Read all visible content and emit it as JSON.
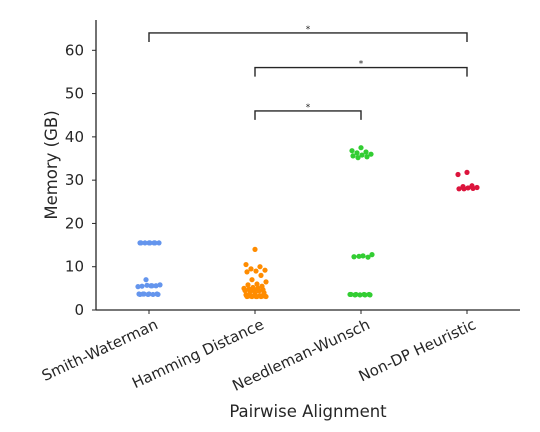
{
  "chart_data": {
    "type": "scatter",
    "xlabel": "Pairwise Alignment",
    "ylabel": "Memory (GB)",
    "ylim": [
      0,
      67
    ],
    "yticks": [
      0,
      10,
      20,
      30,
      40,
      50,
      60
    ],
    "grid": false,
    "categories": [
      "Smith-Waterman",
      "Hamming Distance",
      "Needleman-Wunsch",
      "Non-DP Heuristic"
    ],
    "series": [
      {
        "category": "Smith-Waterman",
        "color": "#6495ED",
        "values": [
          15.5,
          15.5,
          15.5,
          15.5,
          15.5,
          15.5,
          15.5,
          15.5,
          7.0,
          5.8,
          5.6,
          5.5,
          5.6,
          5.7,
          5.4,
          5.6,
          3.7,
          3.7,
          3.6,
          3.7,
          3.6,
          3.7,
          3.6,
          3.7,
          3.6
        ]
      },
      {
        "category": "Hamming Distance",
        "color": "#FF8C00",
        "values": [
          14.0,
          10.5,
          10.0,
          9.5,
          9.2,
          9.0,
          8.8,
          8.0,
          7.0,
          6.5,
          6.0,
          5.8,
          5.5,
          5.2,
          5.0,
          5.0,
          4.8,
          4.7,
          4.5,
          4.5,
          4.4,
          4.2,
          4.0,
          3.8,
          3.5,
          3.3,
          3.2,
          3.2,
          3.1,
          3.1,
          3.1,
          3.1,
          3.1,
          3.1,
          3.2,
          3.2
        ]
      },
      {
        "category": "Needleman-Wunsch",
        "color": "#32CD32",
        "values": [
          37.5,
          36.8,
          36.5,
          36.3,
          36.0,
          35.8,
          35.6,
          35.4,
          35.2,
          12.8,
          12.5,
          12.3,
          12.2,
          12.4,
          3.6,
          3.6,
          3.5,
          3.6,
          3.5,
          3.6,
          3.5,
          3.6,
          3.5
        ]
      },
      {
        "category": "Non-DP Heuristic",
        "color": "#DC143C",
        "values": [
          31.8,
          31.3,
          28.7,
          28.5,
          28.3,
          28.2,
          28.0,
          28.1,
          28.0
        ]
      }
    ],
    "annotations": [
      {
        "from": "Hamming Distance",
        "to": "Needleman-Wunsch",
        "label": "*"
      },
      {
        "from": "Hamming Distance",
        "to": "Non-DP Heuristic",
        "label": "*"
      },
      {
        "from": "Smith-Waterman",
        "to": "Non-DP Heuristic",
        "label": "*"
      }
    ]
  }
}
